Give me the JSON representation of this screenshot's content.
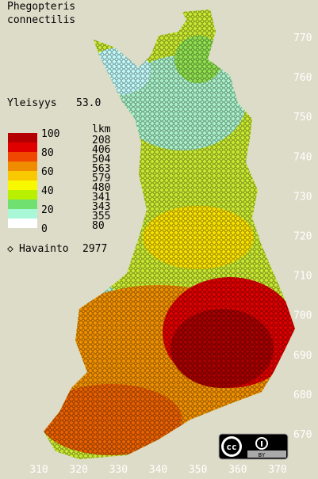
{
  "title": {
    "genus": "Phegopteris",
    "species": "connectilis"
  },
  "frequency": {
    "label": "Yleisyys",
    "value": "53.0"
  },
  "legend": {
    "header": "lkm",
    "scale": [
      100,
      80,
      60,
      40,
      20,
      0
    ],
    "counts": [
      208,
      406,
      504,
      563,
      579,
      480,
      341,
      343,
      355,
      80
    ],
    "colors": [
      "#b40000",
      "#e00000",
      "#f04800",
      "#f08c00",
      "#f8c800",
      "#f8f800",
      "#b8f000",
      "#70e070",
      "#a8f8d8",
      "#ffffff"
    ]
  },
  "observations": {
    "label": "Havainto",
    "count": 2977
  },
  "grid": {
    "y_labels": [
      770,
      760,
      750,
      740,
      730,
      720,
      710,
      700,
      690,
      680,
      670
    ],
    "x_labels": [
      310,
      320,
      330,
      340,
      350,
      360,
      370
    ]
  },
  "badge": {
    "cc": "cc",
    "by": "BY"
  }
}
